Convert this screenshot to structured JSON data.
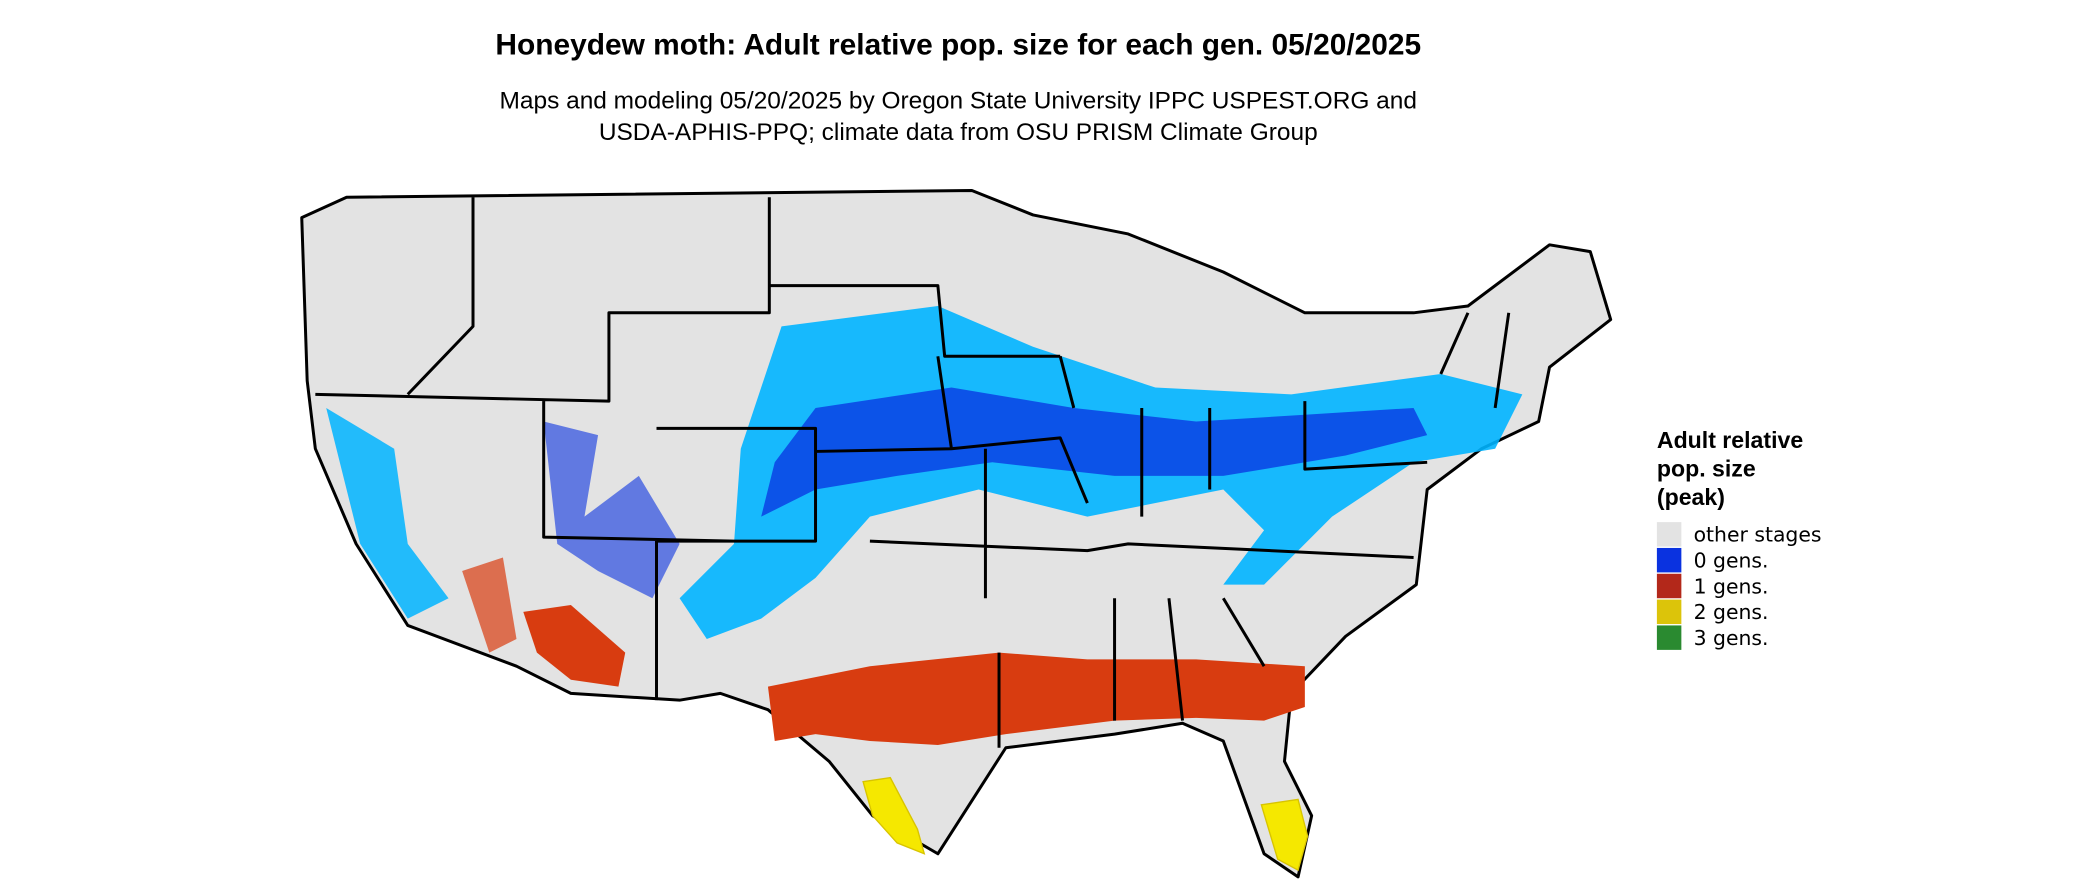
{
  "title": "Honeydew moth: Adult relative pop. size for each gen. 05/20/2025",
  "subtitle": [
    "Maps and modeling 05/20/2025 by Oregon State University IPPC USPEST.ORG and",
    "USDA-APHIS-PPQ; climate data from OSU PRISM Climate Group"
  ],
  "legend": {
    "title": [
      "Adult relative",
      "pop. size",
      "(peak)"
    ],
    "items": [
      {
        "label": "other stages",
        "color": "#e3e3e3"
      },
      {
        "label": "0 gens.",
        "color": "#0a32e0"
      },
      {
        "label": "1 gens.",
        "color": "#b3281a"
      },
      {
        "label": "2 gens.",
        "color": "#dcc40a"
      },
      {
        "label": "3 gens.",
        "color": "#2a8a30"
      }
    ]
  }
}
